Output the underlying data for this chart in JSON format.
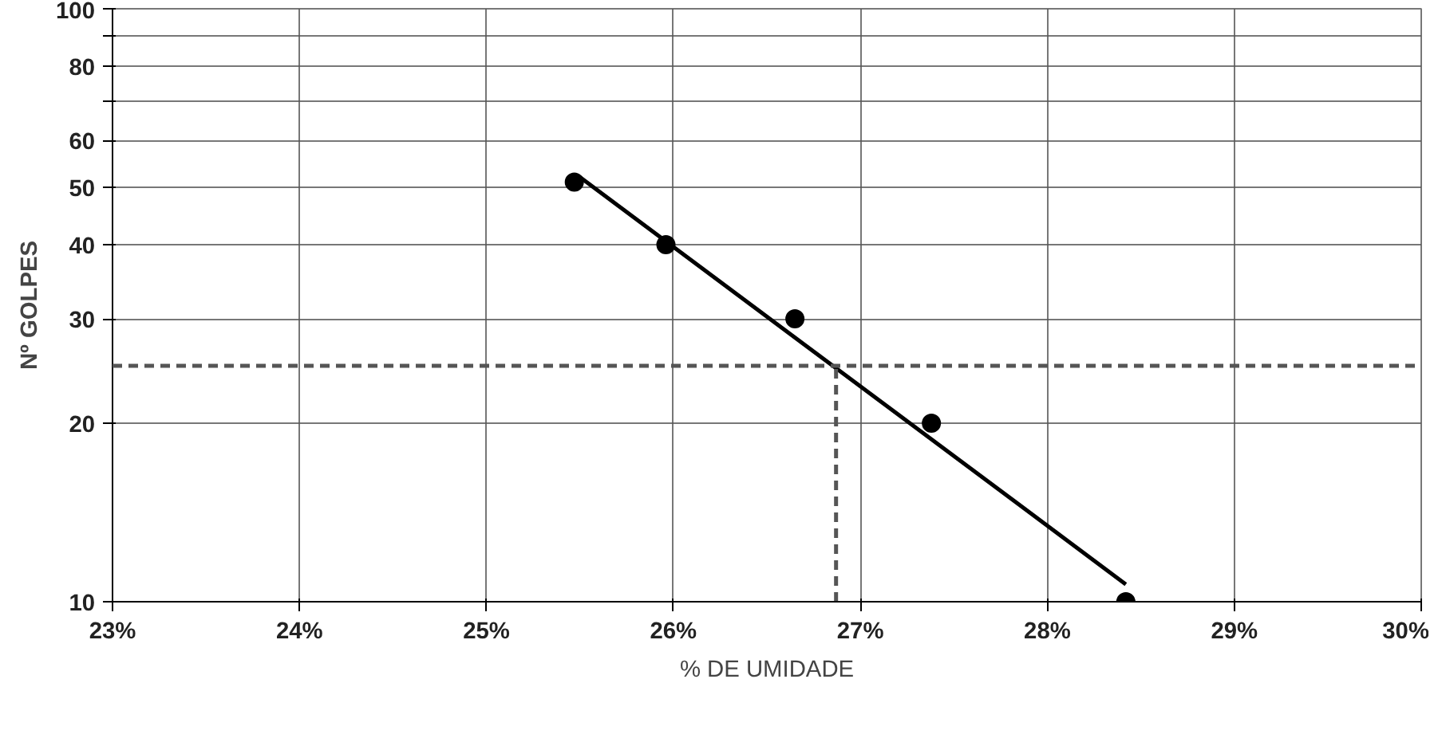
{
  "chart_data": {
    "type": "scatter",
    "xlabel": "% DE UMIDADE",
    "ylabel": "Nº GOLPES",
    "log": "y",
    "grid": true,
    "marker": "circle",
    "xlim": [
      23,
      30
    ],
    "ylim": [
      10,
      100
    ],
    "xticks": [
      {
        "value": 23,
        "label": "23%"
      },
      {
        "value": 24,
        "label": "24%"
      },
      {
        "value": 25,
        "label": "25%"
      },
      {
        "value": 26,
        "label": "26%"
      },
      {
        "value": 27,
        "label": "27%"
      },
      {
        "value": 28,
        "label": "28%"
      },
      {
        "value": 29,
        "label": "29%"
      },
      {
        "value": 30,
        "label": "30%"
      }
    ],
    "yticks": [
      10,
      20,
      30,
      40,
      50,
      60,
      {
        "value": 70,
        "label": null
      },
      80,
      {
        "value": 90,
        "label": null
      },
      100
    ],
    "ref_lines": [
      {
        "axis": "y",
        "value": 25,
        "label": null,
        "color": "#555555",
        "line_style": "dashed"
      }
    ],
    "series": [
      {
        "color": "#000000",
        "x": [
          25.47,
          25.96,
          26.65,
          27.38,
          28.42
        ],
        "values": [
          51,
          40,
          30,
          20,
          10
        ]
      },
      {
        "type": "line",
        "color": "#000000",
        "marker": "none",
        "line_style": "solid",
        "x": [
          25.5,
          28.42
        ],
        "values": [
          52,
          10.7
        ]
      },
      {
        "type": "line",
        "color": "#555555",
        "marker": "none",
        "line_style": "dashed",
        "x": [
          26.87,
          26.87
        ],
        "values": [
          10,
          25
        ]
      }
    ]
  }
}
